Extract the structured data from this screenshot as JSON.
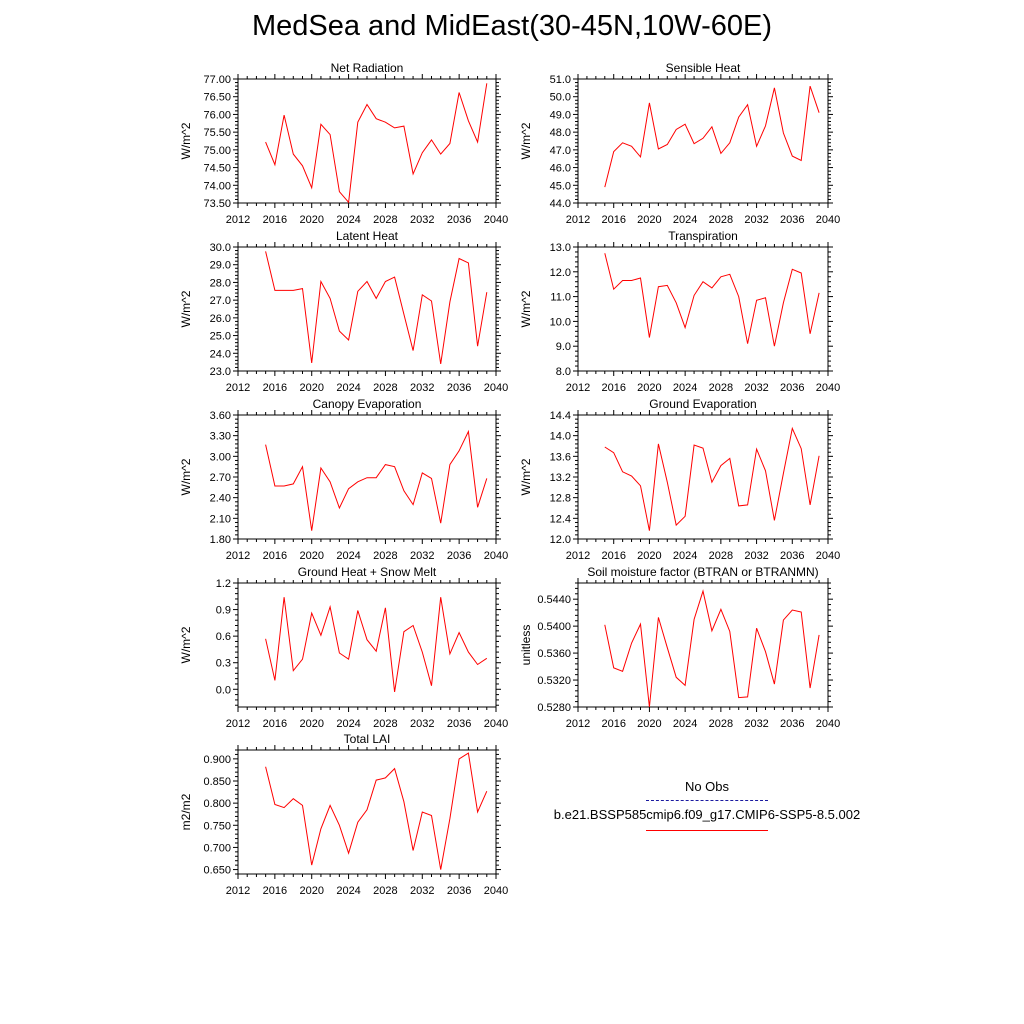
{
  "title": "MedSea and MidEast(30-45N,10W-60E)",
  "legend": {
    "obs_label": "No Obs",
    "obs_color": "#1a1aa0",
    "case_label": "b.e21.BSSP585cmip6.f09_g17.CMIP6-SSP5-8.5.002",
    "case_color": "#ff0000"
  },
  "chart_data": [
    {
      "type": "line",
      "title": "Net Radiation",
      "ylabel": "W/m^2",
      "xlim": [
        2012,
        2040
      ],
      "xticks": [
        2012,
        2016,
        2020,
        2024,
        2028,
        2032,
        2036,
        2040
      ],
      "ylim": [
        73.5,
        77.0
      ],
      "yticks": [
        73.5,
        74.0,
        74.5,
        75.0,
        75.5,
        76.0,
        76.5,
        77.0
      ],
      "ydec": 2,
      "x": [
        2015,
        2016,
        2017,
        2018,
        2019,
        2020,
        2021,
        2022,
        2023,
        2024,
        2025,
        2026,
        2027,
        2028,
        2029,
        2030,
        2031,
        2032,
        2033,
        2034,
        2035,
        2036,
        2037,
        2038,
        2039
      ],
      "values": [
        75.22,
        74.58,
        75.98,
        74.88,
        74.55,
        73.93,
        75.72,
        75.43,
        73.82,
        73.52,
        75.78,
        76.28,
        75.88,
        75.78,
        75.62,
        75.67,
        74.32,
        74.92,
        75.28,
        74.88,
        75.18,
        76.62,
        75.82,
        75.22,
        76.88
      ]
    },
    {
      "type": "line",
      "title": "Sensible Heat",
      "ylabel": "W/m^2",
      "xlim": [
        2012,
        2040
      ],
      "xticks": [
        2012,
        2016,
        2020,
        2024,
        2028,
        2032,
        2036,
        2040
      ],
      "ylim": [
        44.0,
        51.0
      ],
      "yticks": [
        44.0,
        45.0,
        46.0,
        47.0,
        48.0,
        49.0,
        50.0,
        51.0
      ],
      "ydec": 1,
      "x": [
        2015,
        2016,
        2017,
        2018,
        2019,
        2020,
        2021,
        2022,
        2023,
        2024,
        2025,
        2026,
        2027,
        2028,
        2029,
        2030,
        2031,
        2032,
        2033,
        2034,
        2035,
        2036,
        2037,
        2038,
        2039
      ],
      "values": [
        44.9,
        46.9,
        47.4,
        47.2,
        46.6,
        49.65,
        47.05,
        47.3,
        48.15,
        48.45,
        47.35,
        47.65,
        48.3,
        46.8,
        47.4,
        48.85,
        49.55,
        47.2,
        48.35,
        50.5,
        47.95,
        46.65,
        46.4,
        50.6,
        49.1
      ]
    },
    {
      "type": "line",
      "title": "Latent Heat",
      "ylabel": "W/m^2",
      "xlim": [
        2012,
        2040
      ],
      "xticks": [
        2012,
        2016,
        2020,
        2024,
        2028,
        2032,
        2036,
        2040
      ],
      "ylim": [
        23.0,
        30.0
      ],
      "yticks": [
        23.0,
        24.0,
        25.0,
        26.0,
        27.0,
        28.0,
        29.0,
        30.0
      ],
      "ydec": 1,
      "x": [
        2015,
        2016,
        2017,
        2018,
        2019,
        2020,
        2021,
        2022,
        2023,
        2024,
        2025,
        2026,
        2027,
        2028,
        2029,
        2030,
        2031,
        2032,
        2033,
        2034,
        2035,
        2036,
        2037,
        2038,
        2039
      ],
      "values": [
        29.75,
        27.55,
        27.55,
        27.55,
        27.65,
        23.45,
        28.05,
        27.1,
        25.25,
        24.75,
        27.5,
        28.05,
        27.1,
        28.05,
        28.3,
        26.2,
        24.15,
        27.3,
        26.95,
        23.4,
        26.9,
        29.35,
        29.1,
        24.4,
        27.45
      ]
    },
    {
      "type": "line",
      "title": "Transpiration",
      "ylabel": "W/m^2",
      "xlim": [
        2012,
        2040
      ],
      "xticks": [
        2012,
        2016,
        2020,
        2024,
        2028,
        2032,
        2036,
        2040
      ],
      "ylim": [
        8.0,
        13.0
      ],
      "yticks": [
        8.0,
        9.0,
        10.0,
        11.0,
        12.0,
        13.0
      ],
      "ydec": 1,
      "x": [
        2015,
        2016,
        2017,
        2018,
        2019,
        2020,
        2021,
        2022,
        2023,
        2024,
        2025,
        2026,
        2027,
        2028,
        2029,
        2030,
        2031,
        2032,
        2033,
        2034,
        2035,
        2036,
        2037,
        2038,
        2039
      ],
      "values": [
        12.75,
        11.3,
        11.65,
        11.65,
        11.75,
        9.35,
        11.4,
        11.45,
        10.75,
        9.75,
        11.05,
        11.6,
        11.35,
        11.8,
        11.9,
        11.0,
        9.1,
        10.85,
        10.95,
        9.0,
        10.75,
        12.1,
        11.95,
        9.5,
        11.15
      ]
    },
    {
      "type": "line",
      "title": "Canopy Evaporation",
      "ylabel": "W/m^2",
      "xlim": [
        2012,
        2040
      ],
      "xticks": [
        2012,
        2016,
        2020,
        2024,
        2028,
        2032,
        2036,
        2040
      ],
      "ylim": [
        1.8,
        3.6
      ],
      "yticks": [
        1.8,
        2.1,
        2.4,
        2.7,
        3.0,
        3.3,
        3.6
      ],
      "ydec": 2,
      "x": [
        2015,
        2016,
        2017,
        2018,
        2019,
        2020,
        2021,
        2022,
        2023,
        2024,
        2025,
        2026,
        2027,
        2028,
        2029,
        2030,
        2031,
        2032,
        2033,
        2034,
        2035,
        2036,
        2037,
        2038,
        2039
      ],
      "values": [
        3.17,
        2.57,
        2.57,
        2.6,
        2.85,
        1.92,
        2.83,
        2.63,
        2.25,
        2.53,
        2.63,
        2.69,
        2.69,
        2.88,
        2.85,
        2.5,
        2.3,
        2.76,
        2.68,
        2.03,
        2.88,
        3.08,
        3.36,
        2.26,
        2.68
      ]
    },
    {
      "type": "line",
      "title": "Ground Evaporation",
      "ylabel": "W/m^2",
      "xlim": [
        2012,
        2040
      ],
      "xticks": [
        2012,
        2016,
        2020,
        2024,
        2028,
        2032,
        2036,
        2040
      ],
      "ylim": [
        12.0,
        14.4
      ],
      "yticks": [
        12.0,
        12.4,
        12.8,
        13.2,
        13.6,
        14.0,
        14.4
      ],
      "ydec": 1,
      "x": [
        2015,
        2016,
        2017,
        2018,
        2019,
        2020,
        2021,
        2022,
        2023,
        2024,
        2025,
        2026,
        2027,
        2028,
        2029,
        2030,
        2031,
        2032,
        2033,
        2034,
        2035,
        2036,
        2037,
        2038,
        2039
      ],
      "values": [
        13.78,
        13.67,
        13.3,
        13.22,
        13.03,
        12.16,
        13.84,
        13.1,
        12.27,
        12.44,
        13.82,
        13.76,
        13.1,
        13.42,
        13.56,
        12.64,
        12.66,
        13.74,
        13.32,
        12.36,
        13.27,
        14.14,
        13.75,
        12.66,
        13.61
      ]
    },
    {
      "type": "line",
      "title": "Ground Heat + Snow Melt",
      "ylabel": "W/m^2",
      "xlim": [
        2012,
        2040
      ],
      "xticks": [
        2012,
        2016,
        2020,
        2024,
        2028,
        2032,
        2036,
        2040
      ],
      "ylim": [
        -0.2,
        1.2
      ],
      "yticks": [
        0.0,
        0.3,
        0.6,
        0.9,
        1.2
      ],
      "ydec": 1,
      "x": [
        2015,
        2016,
        2017,
        2018,
        2019,
        2020,
        2021,
        2022,
        2023,
        2024,
        2025,
        2026,
        2027,
        2028,
        2029,
        2030,
        2031,
        2032,
        2033,
        2034,
        2035,
        2036,
        2037,
        2038,
        2039
      ],
      "values": [
        0.57,
        0.1,
        1.04,
        0.21,
        0.34,
        0.86,
        0.61,
        0.93,
        0.41,
        0.34,
        0.89,
        0.56,
        0.43,
        0.92,
        -0.03,
        0.65,
        0.72,
        0.42,
        0.04,
        1.04,
        0.4,
        0.64,
        0.42,
        0.28,
        0.35
      ]
    },
    {
      "type": "line",
      "title": "Soil moisture factor (BTRAN or BTRANMN)",
      "ylabel": "unitless",
      "xlim": [
        2012,
        2040
      ],
      "xticks": [
        2012,
        2016,
        2020,
        2024,
        2028,
        2032,
        2036,
        2040
      ],
      "ylim": [
        0.528,
        0.5464
      ],
      "yticks": [
        0.528,
        0.532,
        0.536,
        0.54,
        0.544
      ],
      "ydec": 4,
      "x": [
        2015,
        2016,
        2017,
        2018,
        2019,
        2020,
        2021,
        2022,
        2023,
        2024,
        2025,
        2026,
        2027,
        2028,
        2029,
        2030,
        2031,
        2032,
        2033,
        2034,
        2035,
        2036,
        2037,
        2038,
        2039
      ],
      "values": [
        0.5402,
        0.5338,
        0.5333,
        0.5375,
        0.5403,
        0.528,
        0.5413,
        0.5368,
        0.5324,
        0.5312,
        0.541,
        0.5452,
        0.5393,
        0.5425,
        0.5392,
        0.5294,
        0.5295,
        0.5397,
        0.5362,
        0.5314,
        0.5409,
        0.5424,
        0.5421,
        0.5308,
        0.5387
      ]
    },
    {
      "type": "line",
      "title": "Total LAI",
      "ylabel": "m2/m2",
      "xlim": [
        2012,
        2040
      ],
      "xticks": [
        2012,
        2016,
        2020,
        2024,
        2028,
        2032,
        2036,
        2040
      ],
      "ylim": [
        0.64,
        0.92
      ],
      "yticks": [
        0.65,
        0.7,
        0.75,
        0.8,
        0.85,
        0.9
      ],
      "ydec": 3,
      "x": [
        2015,
        2016,
        2017,
        2018,
        2019,
        2020,
        2021,
        2022,
        2023,
        2024,
        2025,
        2026,
        2027,
        2028,
        2029,
        2030,
        2031,
        2032,
        2033,
        2034,
        2035,
        2036,
        2037,
        2038,
        2039
      ],
      "values": [
        0.882,
        0.797,
        0.79,
        0.81,
        0.795,
        0.66,
        0.742,
        0.795,
        0.75,
        0.687,
        0.757,
        0.785,
        0.852,
        0.857,
        0.878,
        0.803,
        0.693,
        0.78,
        0.772,
        0.65,
        0.765,
        0.9,
        0.913,
        0.78,
        0.827
      ]
    }
  ]
}
